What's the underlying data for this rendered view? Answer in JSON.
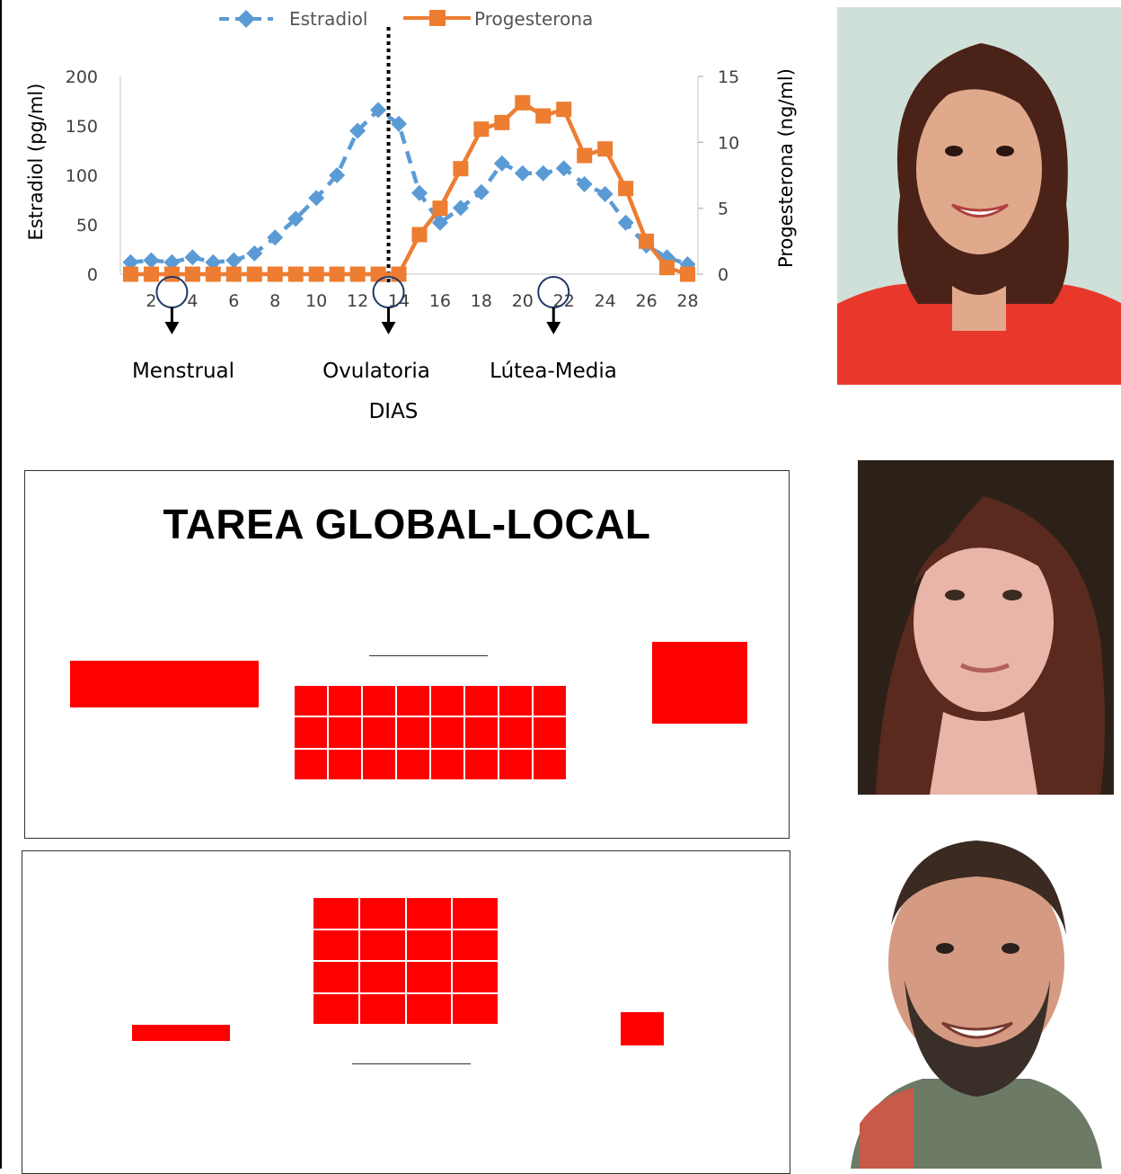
{
  "legend": {
    "estradiol": "Estradiol",
    "progesterona": "Progesterona"
  },
  "chart_data": {
    "type": "line",
    "xlabel": "DIAS",
    "ylabel_left": "Estradiol (pg/ml)",
    "ylabel_right": "Progesterona (ng/ml)",
    "x_ticks": [
      2,
      4,
      6,
      8,
      10,
      12,
      14,
      16,
      18,
      20,
      22,
      24,
      26,
      28
    ],
    "y_left_ticks": [
      0,
      50,
      100,
      150,
      200
    ],
    "y_right_ticks": [
      0,
      5,
      10,
      15
    ],
    "ylim_left": [
      0,
      200
    ],
    "ylim_right": [
      0,
      15
    ],
    "xlim": [
      0.5,
      28.5
    ],
    "ovulation_day": 13.5,
    "series": [
      {
        "name": "Estradiol",
        "axis": "left",
        "color": "#5b9bd5",
        "style": "dashed-diamond",
        "x": [
          1,
          2,
          3,
          4,
          5,
          6,
          7,
          8,
          9,
          10,
          11,
          12,
          13,
          14,
          15,
          16,
          17,
          18,
          19,
          20,
          21,
          22,
          23,
          24,
          25,
          26,
          27,
          28
        ],
        "values": [
          12,
          14,
          12,
          17,
          12,
          14,
          21,
          37,
          56,
          77,
          100,
          145,
          166,
          152,
          82,
          52,
          67,
          83,
          112,
          102,
          102,
          107,
          91,
          81,
          52,
          29,
          17,
          10
        ]
      },
      {
        "name": "Progesterona",
        "axis": "right",
        "color": "#ed7d31",
        "style": "solid-square",
        "x": [
          1,
          2,
          3,
          4,
          5,
          6,
          7,
          8,
          9,
          10,
          11,
          12,
          13,
          14,
          15,
          16,
          17,
          18,
          19,
          20,
          21,
          22,
          23,
          24,
          25,
          26,
          27,
          28
        ],
        "values": [
          0,
          0,
          0,
          0,
          0,
          0,
          0,
          0,
          0,
          0,
          0,
          0,
          0,
          0,
          3,
          5,
          8,
          11,
          11.5,
          13,
          12,
          12.5,
          9,
          9.5,
          6.5,
          2.5,
          0.5,
          0
        ]
      }
    ],
    "phases": [
      {
        "label": "Menstrual",
        "day": 3
      },
      {
        "label": "Ovulatoria",
        "day": 13.5
      },
      {
        "label": "Lútea-Media",
        "day": 21.5
      }
    ]
  },
  "task": {
    "title": "TAREA GLOBAL-LOCAL"
  }
}
